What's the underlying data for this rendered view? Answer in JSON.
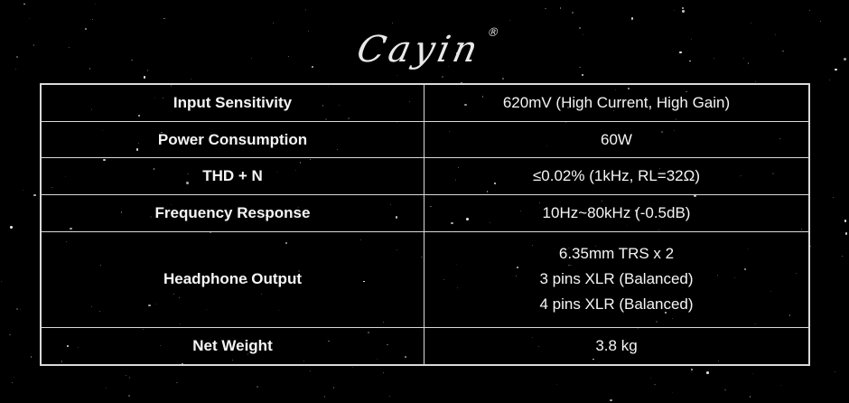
{
  "brand": {
    "logo_text": "Cayin",
    "registered_mark": "®"
  },
  "colors": {
    "background": "#000000",
    "table_border": "#d9d9d9",
    "text": "#f5f5f5",
    "star": "#ffffff"
  },
  "spec_table": {
    "rows": [
      {
        "label": "Input Sensitivity",
        "value": "620mV (High Current, High Gain)"
      },
      {
        "label": "Power Consumption",
        "value": "60W"
      },
      {
        "label": "THD + N",
        "value": "≤0.02% (1kHz, RL=32Ω)"
      },
      {
        "label": "Frequency Response",
        "value": "10Hz~80kHz (-0.5dB)"
      },
      {
        "label": "Headphone Output",
        "value_lines": [
          "6.35mm TRS x 2",
          "3 pins XLR (Balanced)",
          "4 pins XLR (Balanced)"
        ]
      },
      {
        "label": "Net Weight",
        "value": "3.8 kg"
      }
    ]
  }
}
